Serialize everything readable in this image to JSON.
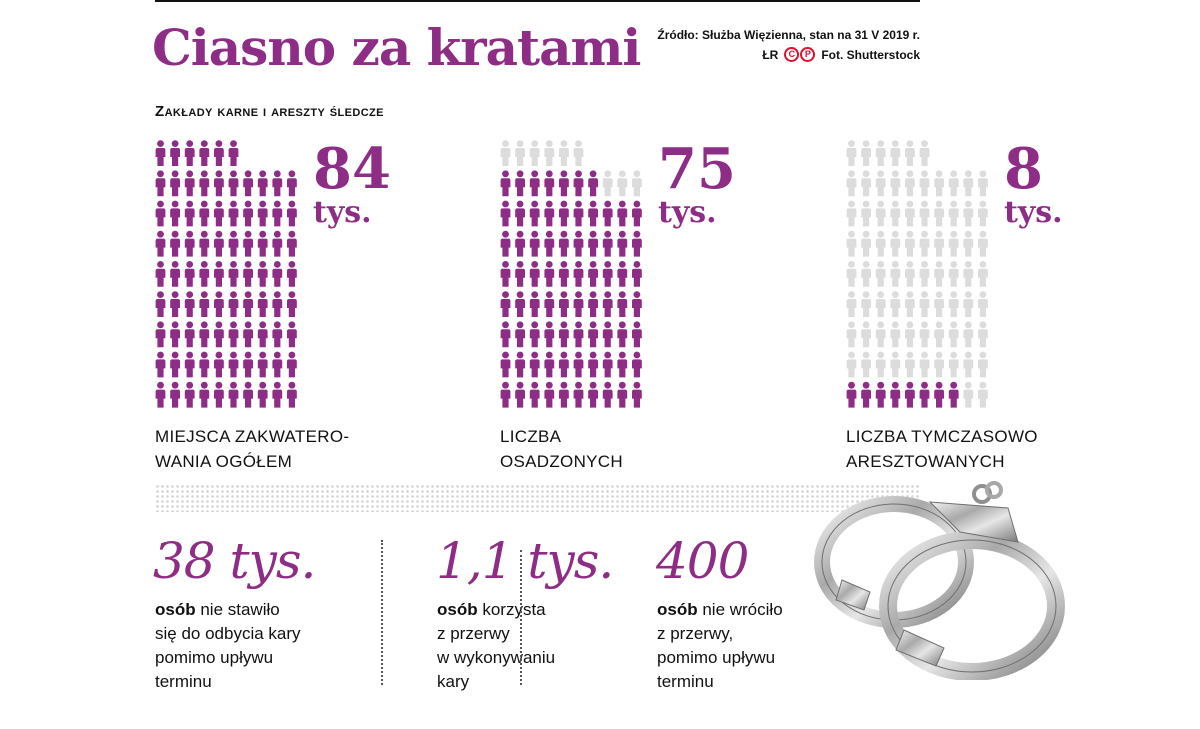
{
  "title": "Ciasno za kratami",
  "source": "Źródło: Służba Więzienna, stan na 31 V 2019 r.",
  "credit": {
    "author": "ŁR",
    "logo_letters": [
      "C",
      "P"
    ],
    "photo": "Fot. Shutterstock"
  },
  "subtitle": "Zakłady karne i areszty śledcze",
  "colors": {
    "accent": "#8e2d86",
    "inactive": "#dcdcdc"
  },
  "chart_data": {
    "type": "pictogram",
    "grid": {
      "columns": 10,
      "rows": 9,
      "full": 86
    },
    "groups": [
      {
        "value": 84,
        "unit": "tys.",
        "label_lines": [
          "MIEJSCA ZAKWATERO-",
          "WANIA OGÓŁEM"
        ]
      },
      {
        "value": 75,
        "unit": "tys.",
        "label_lines": [
          "LICZBA",
          "OSADZONYCH"
        ]
      },
      {
        "value": 8,
        "unit": "tys.",
        "label_lines": [
          "LICZBA TYMCZASOWO",
          "ARESZTOWANYCH"
        ]
      }
    ]
  },
  "stats": [
    {
      "value": "38 tys.",
      "bold": "osób",
      "lines": [
        " nie stawiło",
        "się do odbycia kary",
        "pomimo upływu",
        "terminu"
      ]
    },
    {
      "value": "1,1 tys.",
      "bold": "osób",
      "lines": [
        " korzysta",
        "z przerwy",
        "w wykonywaniu",
        "kary"
      ]
    },
    {
      "value": "400",
      "bold": "osób",
      "lines": [
        " nie wróciło",
        "z przerwy,",
        "pomimo upływu",
        "terminu"
      ]
    }
  ],
  "illustration": "handcuffs-icon"
}
